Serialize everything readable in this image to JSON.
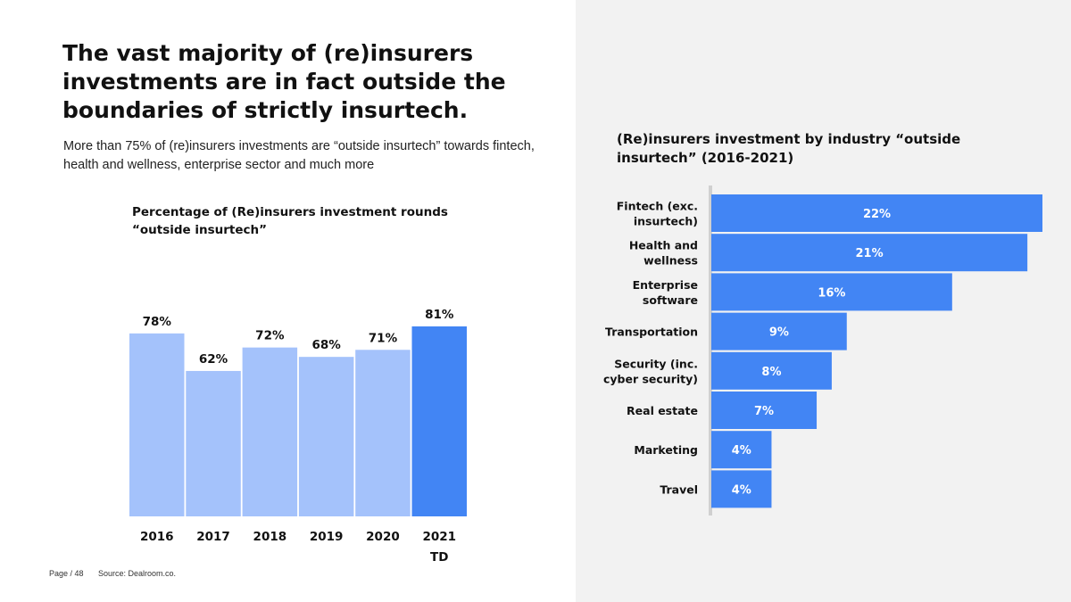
{
  "page": {
    "title": "The vast majority of (re)insurers investments are in fact outside the boundaries of strictly insurtech.",
    "subtitle": "More than 75% of (re)insurers investments are “outside insurtech” towards fintech, health and wellness, enterprise sector and much more",
    "footer_page": "Page / 48",
    "footer_source": "Source: Dealroom.co."
  },
  "colors": {
    "light_bar": "#a4c2fb",
    "dark_bar": "#4285f4",
    "right_panel_bg": "#f2f2f2",
    "axis": "#d0d0d0"
  },
  "chart_data": [
    {
      "type": "bar",
      "orientation": "vertical",
      "title": "Percentage of (Re)insurers investment rounds “outside insurtech”",
      "categories": [
        "2016",
        "2017",
        "2018",
        "2019",
        "2020",
        "2021"
      ],
      "category_sublabels": [
        "",
        "",
        "",
        "",
        "",
        "TD"
      ],
      "values": [
        78,
        62,
        72,
        68,
        71,
        81
      ],
      "value_labels": [
        "78%",
        "62%",
        "72%",
        "68%",
        "71%",
        "81%"
      ],
      "highlight": [
        false,
        false,
        false,
        false,
        false,
        true
      ],
      "unit": "%",
      "ylim": [
        0,
        100
      ],
      "grid": false
    },
    {
      "type": "bar",
      "orientation": "horizontal",
      "title": "(Re)insurers investment by industry “outside insurtech” (2016-2021)",
      "categories": [
        [
          "Fintech (exc.",
          "insurtech)"
        ],
        [
          "Health and",
          "wellness"
        ],
        [
          "Enterprise",
          "software"
        ],
        [
          "Transportation"
        ],
        [
          "Security (inc.",
          "cyber security)"
        ],
        [
          "Real estate"
        ],
        [
          "Marketing"
        ],
        [
          "Travel"
        ]
      ],
      "values": [
        22,
        21,
        16,
        9,
        8,
        7,
        4,
        4
      ],
      "value_labels": [
        "22%",
        "21%",
        "16%",
        "9%",
        "8%",
        "7%",
        "4%",
        "4%"
      ],
      "unit": "%",
      "grid": false
    }
  ]
}
